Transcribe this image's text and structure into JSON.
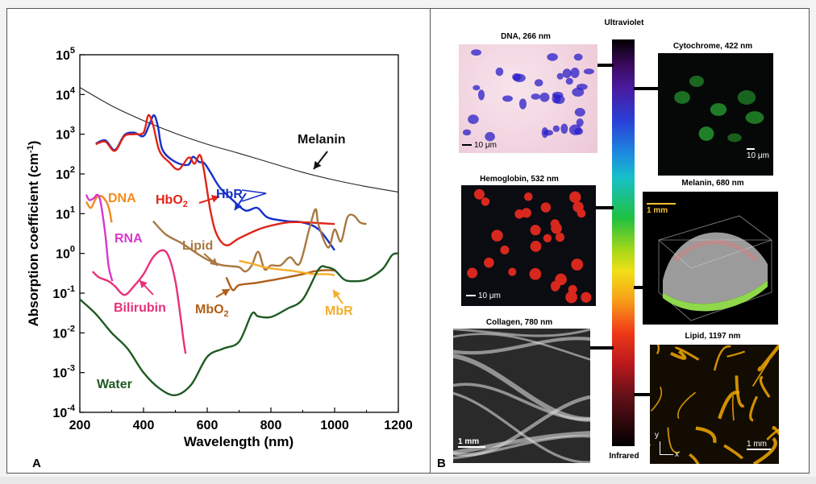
{
  "panel_labels": {
    "a": "A",
    "b": "B"
  },
  "chart_data": {
    "type": "line",
    "xlabel": "Wavelength (nm)",
    "ylabel": "Absorption coefficient (cm-1)",
    "ylabel_parts": {
      "main": "Absorption coefficient (cm",
      "sup": "-1",
      "end": ")"
    },
    "xlim": [
      200,
      1200
    ],
    "ylim_log10": [
      -4,
      5
    ],
    "yscale": "log",
    "x_ticks": [
      "200",
      "400",
      "600",
      "800",
      "1000",
      "1200"
    ],
    "y_tick_exponents": [
      "5",
      "4",
      "3",
      "2",
      "1",
      "0",
      "-1",
      "-2",
      "-3",
      "-4"
    ],
    "y_tick_base": "10",
    "series": [
      {
        "name": "Melanin",
        "color": "#222222",
        "points": [
          [
            200,
            15000
          ],
          [
            300,
            5200
          ],
          [
            400,
            2200
          ],
          [
            500,
            1050
          ],
          [
            600,
            560
          ],
          [
            700,
            330
          ],
          [
            800,
            190
          ],
          [
            900,
            110
          ],
          [
            1000,
            70
          ],
          [
            1100,
            48
          ],
          [
            1200,
            35
          ]
        ]
      },
      {
        "name": "HbR",
        "color": "#1530c8",
        "points": [
          [
            250,
            580
          ],
          [
            280,
            700
          ],
          [
            310,
            400
          ],
          [
            340,
            950
          ],
          [
            370,
            1100
          ],
          [
            400,
            900
          ],
          [
            420,
            1900
          ],
          [
            433,
            3000
          ],
          [
            445,
            1600
          ],
          [
            460,
            400
          ],
          [
            500,
            200
          ],
          [
            540,
            170
          ],
          [
            555,
            270
          ],
          [
            575,
            200
          ],
          [
            590,
            190
          ],
          [
            610,
            110
          ],
          [
            640,
            45
          ],
          [
            680,
            22
          ],
          [
            720,
            12
          ],
          [
            757,
            14
          ],
          [
            790,
            8
          ],
          [
            850,
            6.5
          ],
          [
            900,
            6
          ],
          [
            950,
            4
          ],
          [
            1000,
            1.2
          ]
        ]
      },
      {
        "name": "HbO2",
        "color": "#e02418",
        "points": [
          [
            250,
            560
          ],
          [
            280,
            650
          ],
          [
            310,
            380
          ],
          [
            340,
            900
          ],
          [
            370,
            1000
          ],
          [
            400,
            1100
          ],
          [
            415,
            3000
          ],
          [
            430,
            1700
          ],
          [
            450,
            380
          ],
          [
            480,
            200
          ],
          [
            510,
            130
          ],
          [
            542,
            260
          ],
          [
            560,
            180
          ],
          [
            577,
            300
          ],
          [
            590,
            120
          ],
          [
            610,
            12
          ],
          [
            630,
            3
          ],
          [
            660,
            1.6
          ],
          [
            700,
            2.4
          ],
          [
            760,
            4
          ],
          [
            800,
            5
          ],
          [
            850,
            6
          ],
          [
            900,
            6.1
          ],
          [
            950,
            5.8
          ],
          [
            1000,
            5.5
          ]
        ]
      },
      {
        "name": "DNA",
        "color": "#f08c1e",
        "points": [
          [
            220,
            20
          ],
          [
            235,
            14
          ],
          [
            250,
            24
          ],
          [
            262,
            28
          ],
          [
            275,
            25
          ],
          [
            290,
            15
          ],
          [
            300,
            6
          ]
        ]
      },
      {
        "name": "RNA",
        "color": "#d838cc",
        "points": [
          [
            220,
            30
          ],
          [
            230,
            22
          ],
          [
            245,
            25
          ],
          [
            255,
            30
          ],
          [
            265,
            20
          ],
          [
            280,
            3
          ],
          [
            290,
            0.5
          ],
          [
            302,
            0.2
          ]
        ]
      },
      {
        "name": "Bilirubin",
        "color": "#e8307a",
        "points": [
          [
            240,
            0.35
          ],
          [
            260,
            0.25
          ],
          [
            290,
            0.2
          ],
          [
            310,
            0.15
          ],
          [
            340,
            0.09
          ],
          [
            370,
            0.15
          ],
          [
            400,
            0.3
          ],
          [
            430,
            0.8
          ],
          [
            460,
            1.2
          ],
          [
            480,
            0.8
          ],
          [
            500,
            0.2
          ],
          [
            515,
            0.03
          ],
          [
            525,
            0.007
          ],
          [
            532,
            0.003
          ]
        ]
      },
      {
        "name": "Lipid",
        "color": "#a87840",
        "points": [
          [
            430,
            6.5
          ],
          [
            470,
            3
          ],
          [
            520,
            1.8
          ],
          [
            560,
            1.1
          ],
          [
            600,
            0.7
          ],
          [
            640,
            0.52
          ],
          [
            670,
            0.48
          ],
          [
            700,
            0.45
          ],
          [
            720,
            0.35
          ],
          [
            740,
            0.5
          ],
          [
            760,
            1.1
          ],
          [
            780,
            0.4
          ],
          [
            800,
            0.5
          ],
          [
            830,
            0.5
          ],
          [
            860,
            0.8
          ],
          [
            890,
            0.55
          ],
          [
            920,
            4
          ],
          [
            940,
            13
          ],
          [
            950,
            5
          ],
          [
            980,
            1.4
          ],
          [
            1000,
            4
          ],
          [
            1020,
            2
          ],
          [
            1040,
            8
          ],
          [
            1060,
            9
          ],
          [
            1080,
            6
          ],
          [
            1100,
            5.5
          ]
        ]
      },
      {
        "name": "MbO2",
        "color": "#b05e18",
        "points": [
          [
            660,
            0.25
          ],
          [
            680,
            0.12
          ],
          [
            700,
            0.16
          ],
          [
            750,
            0.18
          ],
          [
            800,
            0.21
          ],
          [
            850,
            0.25
          ],
          [
            900,
            0.3
          ],
          [
            940,
            0.36
          ],
          [
            980,
            0.38
          ],
          [
            1000,
            0.37
          ]
        ]
      },
      {
        "name": "MbR",
        "color": "#f5ad2a",
        "points": [
          [
            700,
            0.65
          ],
          [
            740,
            0.55
          ],
          [
            780,
            0.45
          ],
          [
            820,
            0.4
          ],
          [
            860,
            0.37
          ],
          [
            900,
            0.33
          ],
          [
            940,
            0.3
          ],
          [
            980,
            0.3
          ],
          [
            1000,
            0.28
          ]
        ]
      },
      {
        "name": "Water",
        "color": "#1e5a22",
        "points": [
          [
            200,
            0.07
          ],
          [
            250,
            0.03
          ],
          [
            300,
            0.01
          ],
          [
            350,
            0.004
          ],
          [
            400,
            0.001
          ],
          [
            450,
            0.0004
          ],
          [
            500,
            0.00027
          ],
          [
            550,
            0.0005
          ],
          [
            600,
            0.0025
          ],
          [
            650,
            0.004
          ],
          [
            700,
            0.006
          ],
          [
            740,
            0.03
          ],
          [
            760,
            0.026
          ],
          [
            800,
            0.025
          ],
          [
            850,
            0.04
          ],
          [
            900,
            0.07
          ],
          [
            950,
            0.4
          ],
          [
            975,
            0.45
          ],
          [
            1000,
            0.38
          ],
          [
            1030,
            0.22
          ],
          [
            1060,
            0.2
          ],
          [
            1100,
            0.22
          ],
          [
            1150,
            0.4
          ],
          [
            1180,
            0.9
          ],
          [
            1200,
            1.0
          ]
        ]
      }
    ],
    "annotations": {
      "melanin": "Melanin",
      "hbr": "HbR",
      "hbo2_base": "HbO",
      "hbo2_sub": "2",
      "dna": "DNA",
      "rna": "RNA",
      "bilirubin": "Bilirubin",
      "lipid": "Lipid",
      "mbo2_base": "MbO",
      "mbo2_sub": "2",
      "mbr": "MbR",
      "water": "Water"
    }
  },
  "panel_b": {
    "spectrum_top": "Ultraviolet",
    "spectrum_bottom": "Infrared",
    "images": [
      {
        "caption": "DNA, 266 nm",
        "scale": "10 μm"
      },
      {
        "caption": "Hemoglobin, 532 nm",
        "scale": "10 μm"
      },
      {
        "caption": "Collagen, 780 nm",
        "scale": "1 mm"
      },
      {
        "caption": "Cytochrome, 422 nm",
        "scale": "10 μm"
      },
      {
        "caption": "Melanin, 680 nm",
        "scale": "1 mm"
      },
      {
        "caption": "Lipid, 1197 nm",
        "scale": "1 mm",
        "axis_y": "y",
        "axis_x": "x"
      }
    ],
    "colors": {
      "dna_stain": "#2a1ec8",
      "hemoglobin": "#d8281e",
      "cytochrome": "#28a030",
      "lipid": "#f2a800"
    }
  }
}
